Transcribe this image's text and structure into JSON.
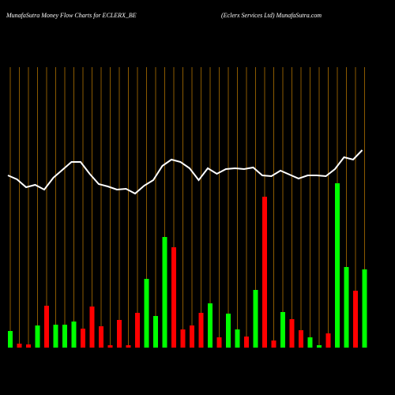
{
  "chart_data": {
    "type": "bar-line",
    "title": "MunafaSutra  Money Flow  Charts for ECLERX_BE",
    "subtitle": "(Eclerx Services Ltd) MunafaSutra.com",
    "ylim": [
      0,
      355
    ],
    "grid_color": "#8b5a00",
    "line_color": "#ffffff",
    "bars": {
      "values": [
        21,
        5,
        4,
        28,
        53,
        29,
        29,
        33,
        24,
        52,
        27,
        3,
        35,
        3,
        44,
        87,
        40,
        140,
        127,
        23,
        28,
        44,
        56,
        13,
        43,
        23,
        14,
        73,
        191,
        9,
        45,
        36,
        22,
        13,
        3,
        18,
        208,
        102,
        72,
        99
      ],
      "colors": [
        "#00ff00",
        "#ff0000",
        "#ff0000",
        "#00ff00",
        "#ff0000",
        "#00ff00",
        "#00ff00",
        "#00ff00",
        "#ff0000",
        "#ff0000",
        "#ff0000",
        "#ff0000",
        "#ff0000",
        "#ff0000",
        "#ff0000",
        "#00ff00",
        "#00ff00",
        "#00ff00",
        "#ff0000",
        "#ff0000",
        "#ff0000",
        "#ff0000",
        "#00ff00",
        "#ff0000",
        "#00ff00",
        "#00ff00",
        "#ff0000",
        "#00ff00",
        "#ff0000",
        "#ff0000",
        "#00ff00",
        "#ff0000",
        "#ff0000",
        "#00ff00",
        "#00ff00",
        "#ff0000",
        "#00ff00",
        "#00ff00",
        "#ff0000",
        "#00ff00"
      ]
    },
    "line": {
      "values": [
        218,
        213,
        203,
        206,
        200,
        215,
        225,
        235,
        235,
        220,
        207,
        204,
        200,
        201,
        195,
        205,
        212,
        230,
        238,
        235,
        227,
        212,
        227,
        220,
        226,
        227,
        226,
        228,
        218,
        217,
        224,
        219,
        214,
        218,
        218,
        217,
        226,
        241,
        238,
        250
      ]
    }
  }
}
